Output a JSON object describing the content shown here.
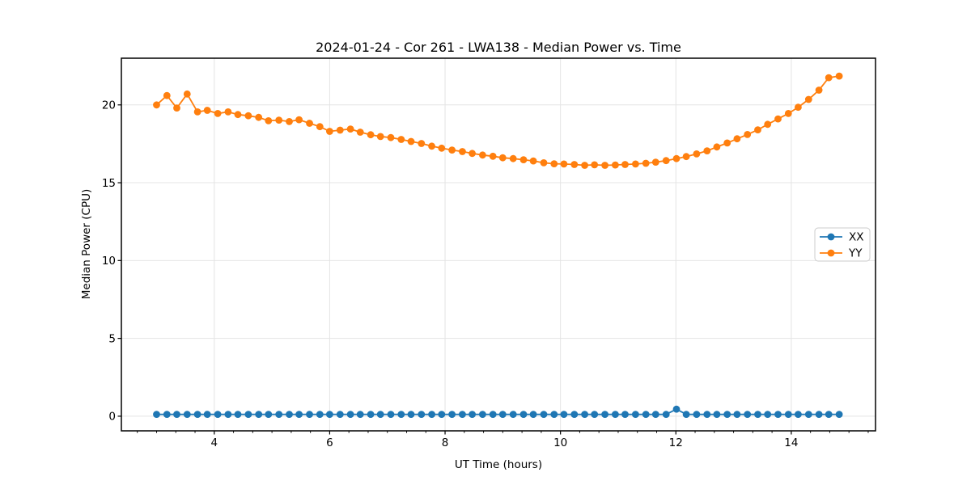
{
  "chart_data": {
    "type": "line",
    "title": "2024-01-24 - Cor 261 - LWA138 - Median Power vs. Time",
    "xlabel": "UT Time (hours)",
    "ylabel": "Median Power (CPU)",
    "xlim": [
      2.39,
      15.46
    ],
    "ylim": [
      -0.94,
      23.0
    ],
    "xticks": [
      4,
      6,
      8,
      10,
      12,
      14
    ],
    "yticks": [
      0,
      5,
      10,
      15,
      20
    ],
    "x_minor_tick_step": 0.33333,
    "grid": true,
    "legend_position": "center right",
    "marker": "o",
    "x": [
      3.0,
      3.18,
      3.35,
      3.53,
      3.71,
      3.88,
      4.06,
      4.24,
      4.41,
      4.59,
      4.77,
      4.94,
      5.12,
      5.3,
      5.47,
      5.65,
      5.83,
      6.0,
      6.18,
      6.36,
      6.53,
      6.71,
      6.88,
      7.06,
      7.24,
      7.41,
      7.59,
      7.77,
      7.94,
      8.12,
      8.3,
      8.47,
      8.65,
      8.83,
      9.0,
      9.18,
      9.36,
      9.53,
      9.71,
      9.89,
      10.06,
      10.24,
      10.42,
      10.59,
      10.77,
      10.95,
      11.12,
      11.3,
      11.48,
      11.65,
      11.83,
      12.01,
      12.18,
      12.36,
      12.54,
      12.71,
      12.89,
      13.06,
      13.24,
      13.42,
      13.59,
      13.77,
      13.95,
      14.12,
      14.3,
      14.48,
      14.65,
      14.83
    ],
    "series": [
      {
        "name": "XX",
        "color": "#1f77b4",
        "values": [
          0.12,
          0.12,
          0.12,
          0.12,
          0.12,
          0.12,
          0.12,
          0.12,
          0.12,
          0.12,
          0.12,
          0.12,
          0.12,
          0.12,
          0.12,
          0.12,
          0.12,
          0.12,
          0.12,
          0.12,
          0.12,
          0.12,
          0.12,
          0.12,
          0.12,
          0.12,
          0.12,
          0.12,
          0.12,
          0.12,
          0.12,
          0.12,
          0.12,
          0.12,
          0.12,
          0.12,
          0.12,
          0.12,
          0.12,
          0.12,
          0.12,
          0.12,
          0.12,
          0.12,
          0.12,
          0.12,
          0.12,
          0.12,
          0.12,
          0.12,
          0.12,
          0.45,
          0.12,
          0.12,
          0.12,
          0.12,
          0.12,
          0.12,
          0.12,
          0.12,
          0.12,
          0.12,
          0.12,
          0.12,
          0.12,
          0.12,
          0.12,
          0.12
        ]
      },
      {
        "name": "YY",
        "color": "#ff7f0e",
        "values": [
          20.0,
          20.6,
          19.8,
          20.7,
          19.55,
          19.65,
          19.45,
          19.55,
          19.38,
          19.3,
          19.2,
          18.98,
          19.02,
          18.93,
          19.05,
          18.82,
          18.6,
          18.3,
          18.38,
          18.45,
          18.25,
          18.08,
          17.97,
          17.9,
          17.78,
          17.65,
          17.52,
          17.35,
          17.22,
          17.1,
          17.0,
          16.88,
          16.78,
          16.7,
          16.6,
          16.55,
          16.48,
          16.4,
          16.28,
          16.22,
          16.2,
          16.17,
          16.12,
          16.15,
          16.12,
          16.14,
          16.17,
          16.2,
          16.25,
          16.32,
          16.42,
          16.55,
          16.68,
          16.85,
          17.05,
          17.3,
          17.55,
          17.82,
          18.1,
          18.4,
          18.75,
          19.1,
          19.45,
          19.85,
          20.35,
          20.95,
          21.75,
          21.85
        ]
      }
    ]
  },
  "style": {
    "grid_color": "#e4e4e4",
    "spine_color": "#000000",
    "legend_border_color": "#cccccc"
  }
}
